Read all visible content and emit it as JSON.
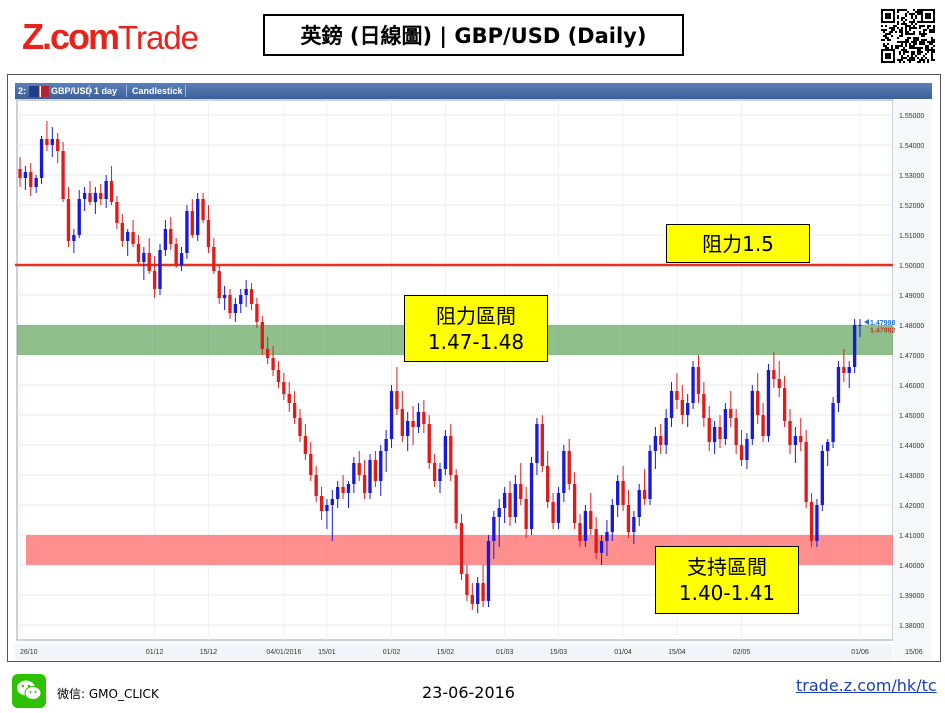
{
  "header": {
    "logo_z": "Z.com",
    "logo_trade": "Trade",
    "title": "英鎊 (日線圖) | GBP/USD  (Daily)"
  },
  "toolbar": {
    "index": "2:",
    "symbol": "GBP/USD",
    "timeframe": "1 day",
    "chart_style": "Candlestick"
  },
  "annotations": {
    "resistance_line": "阻力1.5",
    "resistance_zone_title": "阻力區間",
    "resistance_zone_range": "1.47-1.48",
    "support_zone_title": "支持區間",
    "support_zone_range": "1.40-1.41"
  },
  "price_markers": {
    "last_price": "1.47998",
    "second_price": "1.47982",
    "last_color": "#1f6fd6",
    "second_color": "#c0392b"
  },
  "colors": {
    "brand": "#e8231b",
    "up_candle": "#1a1ad6",
    "down_candle": "#e01b1b",
    "resistance_line": "#e8301a",
    "resistance_zone": "#6aaa64",
    "support_zone": "#ff7b7b",
    "label_bg": "#ffff00"
  },
  "chart_data": {
    "type": "candlestick",
    "symbol": "GBP/USD",
    "timeframe": "1 day",
    "ylim": [
      1.375,
      1.555
    ],
    "y_ticks": [
      "1.38000",
      "1.39000",
      "1.40000",
      "1.41000",
      "1.42000",
      "1.43000",
      "1.44000",
      "1.45000",
      "1.46000",
      "1.47000",
      "1.48000",
      "1.49000",
      "1.50000",
      "1.51000",
      "1.52000",
      "1.53000",
      "1.54000",
      "1.55000"
    ],
    "x_ticks": [
      {
        "label": "26/10",
        "index": 0
      },
      {
        "label": "01/12",
        "index": 25
      },
      {
        "label": "15/12",
        "index": 35
      },
      {
        "label": "04/01/2016",
        "index": 49
      },
      {
        "label": "15/01",
        "index": 57
      },
      {
        "label": "01/02",
        "index": 69
      },
      {
        "label": "15/02",
        "index": 79
      },
      {
        "label": "01/03",
        "index": 90
      },
      {
        "label": "15/03",
        "index": 100
      },
      {
        "label": "01/04",
        "index": 112
      },
      {
        "label": "15/04",
        "index": 122
      },
      {
        "label": "02/05",
        "index": 134
      },
      {
        "label": "01/06",
        "index": 156
      },
      {
        "label": "15/06",
        "index": 166
      }
    ],
    "resistance_line": 1.5,
    "resistance_zone": [
      1.47,
      1.48
    ],
    "support_zone": [
      1.4,
      1.41
    ],
    "candles": [
      [
        1.532,
        1.536,
        1.526,
        1.529
      ],
      [
        1.529,
        1.533,
        1.525,
        1.531
      ],
      [
        1.531,
        1.534,
        1.523,
        1.526
      ],
      [
        1.526,
        1.53,
        1.524,
        1.529
      ],
      [
        1.529,
        1.543,
        1.527,
        1.542
      ],
      [
        1.542,
        1.548,
        1.538,
        1.54
      ],
      [
        1.54,
        1.546,
        1.536,
        1.542
      ],
      [
        1.542,
        1.544,
        1.534,
        1.538
      ],
      [
        1.538,
        1.541,
        1.521,
        1.522
      ],
      [
        1.522,
        1.526,
        1.506,
        1.508
      ],
      [
        1.508,
        1.512,
        1.504,
        1.51
      ],
      [
        1.51,
        1.525,
        1.509,
        1.522
      ],
      [
        1.522,
        1.526,
        1.518,
        1.524
      ],
      [
        1.524,
        1.528,
        1.52,
        1.521
      ],
      [
        1.521,
        1.526,
        1.517,
        1.524
      ],
      [
        1.524,
        1.527,
        1.52,
        1.522
      ],
      [
        1.522,
        1.53,
        1.519,
        1.528
      ],
      [
        1.528,
        1.533,
        1.52,
        1.521
      ],
      [
        1.521,
        1.523,
        1.512,
        1.514
      ],
      [
        1.514,
        1.517,
        1.506,
        1.508
      ],
      [
        1.508,
        1.512,
        1.503,
        1.511
      ],
      [
        1.511,
        1.515,
        1.506,
        1.507
      ],
      [
        1.507,
        1.51,
        1.5,
        1.501
      ],
      [
        1.501,
        1.506,
        1.495,
        1.504
      ],
      [
        1.504,
        1.509,
        1.497,
        1.498
      ],
      [
        1.498,
        1.503,
        1.489,
        1.492
      ],
      [
        1.492,
        1.507,
        1.49,
        1.505
      ],
      [
        1.505,
        1.515,
        1.503,
        1.512
      ],
      [
        1.512,
        1.516,
        1.505,
        1.507
      ],
      [
        1.507,
        1.509,
        1.499,
        1.5
      ],
      [
        1.5,
        1.506,
        1.498,
        1.504
      ],
      [
        1.504,
        1.52,
        1.502,
        1.518
      ],
      [
        1.518,
        1.522,
        1.509,
        1.51
      ],
      [
        1.51,
        1.524,
        1.508,
        1.522
      ],
      [
        1.522,
        1.524,
        1.514,
        1.515
      ],
      [
        1.515,
        1.52,
        1.504,
        1.506
      ],
      [
        1.506,
        1.509,
        1.497,
        1.498
      ],
      [
        1.498,
        1.5,
        1.487,
        1.489
      ],
      [
        1.489,
        1.493,
        1.485,
        1.49
      ],
      [
        1.49,
        1.492,
        1.482,
        1.484
      ],
      [
        1.484,
        1.489,
        1.481,
        1.487
      ],
      [
        1.487,
        1.492,
        1.484,
        1.49
      ],
      [
        1.49,
        1.495,
        1.486,
        1.492
      ],
      [
        1.492,
        1.494,
        1.485,
        1.487
      ],
      [
        1.487,
        1.489,
        1.479,
        1.481
      ],
      [
        1.481,
        1.483,
        1.47,
        1.472
      ],
      [
        1.472,
        1.476,
        1.467,
        1.469
      ],
      [
        1.469,
        1.473,
        1.463,
        1.465
      ],
      [
        1.465,
        1.468,
        1.459,
        1.461
      ],
      [
        1.461,
        1.464,
        1.455,
        1.457
      ],
      [
        1.457,
        1.461,
        1.451,
        1.454
      ],
      [
        1.454,
        1.458,
        1.447,
        1.449
      ],
      [
        1.449,
        1.452,
        1.441,
        1.443
      ],
      [
        1.443,
        1.447,
        1.435,
        1.437
      ],
      [
        1.437,
        1.441,
        1.428,
        1.43
      ],
      [
        1.43,
        1.433,
        1.421,
        1.423
      ],
      [
        1.423,
        1.426,
        1.415,
        1.418
      ],
      [
        1.418,
        1.422,
        1.412,
        1.42
      ],
      [
        1.42,
        1.425,
        1.408,
        1.422
      ],
      [
        1.422,
        1.428,
        1.419,
        1.426
      ],
      [
        1.426,
        1.43,
        1.422,
        1.424
      ],
      [
        1.424,
        1.428,
        1.419,
        1.427
      ],
      [
        1.427,
        1.436,
        1.424,
        1.434
      ],
      [
        1.434,
        1.438,
        1.428,
        1.43
      ],
      [
        1.43,
        1.435,
        1.422,
        1.424
      ],
      [
        1.424,
        1.437,
        1.422,
        1.435
      ],
      [
        1.435,
        1.438,
        1.426,
        1.428
      ],
      [
        1.428,
        1.44,
        1.423,
        1.438
      ],
      [
        1.438,
        1.445,
        1.431,
        1.442
      ],
      [
        1.442,
        1.46,
        1.439,
        1.458
      ],
      [
        1.458,
        1.466,
        1.45,
        1.452
      ],
      [
        1.452,
        1.458,
        1.441,
        1.443
      ],
      [
        1.443,
        1.451,
        1.438,
        1.448
      ],
      [
        1.448,
        1.453,
        1.44,
        1.446
      ],
      [
        1.446,
        1.454,
        1.444,
        1.451
      ],
      [
        1.451,
        1.455,
        1.444,
        1.447
      ],
      [
        1.447,
        1.45,
        1.432,
        1.434
      ],
      [
        1.434,
        1.437,
        1.426,
        1.428
      ],
      [
        1.428,
        1.434,
        1.424,
        1.432
      ],
      [
        1.432,
        1.445,
        1.43,
        1.443
      ],
      [
        1.443,
        1.447,
        1.428,
        1.43
      ],
      [
        1.43,
        1.432,
        1.412,
        1.414
      ],
      [
        1.414,
        1.417,
        1.395,
        1.397
      ],
      [
        1.397,
        1.4,
        1.388,
        1.39
      ],
      [
        1.39,
        1.394,
        1.385,
        1.387
      ],
      [
        1.387,
        1.396,
        1.384,
        1.394
      ],
      [
        1.394,
        1.4,
        1.386,
        1.388
      ],
      [
        1.388,
        1.41,
        1.386,
        1.408
      ],
      [
        1.408,
        1.418,
        1.402,
        1.416
      ],
      [
        1.416,
        1.422,
        1.406,
        1.419
      ],
      [
        1.419,
        1.426,
        1.414,
        1.424
      ],
      [
        1.424,
        1.428,
        1.413,
        1.416
      ],
      [
        1.416,
        1.43,
        1.414,
        1.427
      ],
      [
        1.427,
        1.434,
        1.42,
        1.422
      ],
      [
        1.422,
        1.426,
        1.409,
        1.412
      ],
      [
        1.412,
        1.436,
        1.41,
        1.434
      ],
      [
        1.434,
        1.449,
        1.43,
        1.447
      ],
      [
        1.447,
        1.45,
        1.431,
        1.433
      ],
      [
        1.433,
        1.438,
        1.419,
        1.421
      ],
      [
        1.421,
        1.424,
        1.412,
        1.414
      ],
      [
        1.414,
        1.426,
        1.412,
        1.424
      ],
      [
        1.424,
        1.44,
        1.421,
        1.438
      ],
      [
        1.438,
        1.442,
        1.425,
        1.427
      ],
      [
        1.427,
        1.431,
        1.412,
        1.414
      ],
      [
        1.414,
        1.417,
        1.406,
        1.408
      ],
      [
        1.408,
        1.42,
        1.406,
        1.418
      ],
      [
        1.418,
        1.424,
        1.41,
        1.412
      ],
      [
        1.412,
        1.416,
        1.402,
        1.404
      ],
      [
        1.404,
        1.41,
        1.4,
        1.408
      ],
      [
        1.408,
        1.415,
        1.403,
        1.411
      ],
      [
        1.411,
        1.422,
        1.408,
        1.42
      ],
      [
        1.42,
        1.43,
        1.416,
        1.428
      ],
      [
        1.428,
        1.433,
        1.418,
        1.42
      ],
      [
        1.42,
        1.425,
        1.409,
        1.411
      ],
      [
        1.411,
        1.418,
        1.407,
        1.416
      ],
      [
        1.416,
        1.427,
        1.413,
        1.425
      ],
      [
        1.425,
        1.432,
        1.42,
        1.422
      ],
      [
        1.422,
        1.44,
        1.42,
        1.438
      ],
      [
        1.438,
        1.446,
        1.432,
        1.443
      ],
      [
        1.443,
        1.447,
        1.437,
        1.44
      ],
      [
        1.44,
        1.452,
        1.437,
        1.449
      ],
      [
        1.449,
        1.461,
        1.446,
        1.458
      ],
      [
        1.458,
        1.464,
        1.452,
        1.455
      ],
      [
        1.455,
        1.46,
        1.447,
        1.45
      ],
      [
        1.45,
        1.457,
        1.446,
        1.454
      ],
      [
        1.454,
        1.468,
        1.452,
        1.466
      ],
      [
        1.466,
        1.47,
        1.454,
        1.457
      ],
      [
        1.457,
        1.461,
        1.446,
        1.449
      ],
      [
        1.449,
        1.453,
        1.438,
        1.441
      ],
      [
        1.441,
        1.448,
        1.437,
        1.446
      ],
      [
        1.446,
        1.45,
        1.439,
        1.442
      ],
      [
        1.442,
        1.454,
        1.44,
        1.452
      ],
      [
        1.452,
        1.458,
        1.446,
        1.449
      ],
      [
        1.449,
        1.452,
        1.437,
        1.44
      ],
      [
        1.44,
        1.445,
        1.433,
        1.435
      ],
      [
        1.435,
        1.444,
        1.432,
        1.442
      ],
      [
        1.442,
        1.46,
        1.44,
        1.458
      ],
      [
        1.458,
        1.464,
        1.447,
        1.45
      ],
      [
        1.45,
        1.454,
        1.441,
        1.443
      ],
      [
        1.443,
        1.467,
        1.441,
        1.465
      ],
      [
        1.465,
        1.471,
        1.459,
        1.462
      ],
      [
        1.462,
        1.468,
        1.456,
        1.459
      ],
      [
        1.459,
        1.463,
        1.446,
        1.448
      ],
      [
        1.448,
        1.452,
        1.437,
        1.44
      ],
      [
        1.44,
        1.446,
        1.434,
        1.443
      ],
      [
        1.443,
        1.449,
        1.438,
        1.441
      ],
      [
        1.441,
        1.445,
        1.419,
        1.421
      ],
      [
        1.421,
        1.424,
        1.406,
        1.408
      ],
      [
        1.408,
        1.422,
        1.406,
        1.42
      ],
      [
        1.42,
        1.44,
        1.418,
        1.438
      ],
      [
        1.438,
        1.442,
        1.433,
        1.441
      ],
      [
        1.441,
        1.456,
        1.439,
        1.454
      ],
      [
        1.454,
        1.468,
        1.451,
        1.466
      ],
      [
        1.466,
        1.472,
        1.461,
        1.464
      ],
      [
        1.464,
        1.468,
        1.459,
        1.466
      ],
      [
        1.466,
        1.482,
        1.464,
        1.48
      ],
      [
        1.48,
        1.482,
        1.476,
        1.48
      ]
    ]
  },
  "footer": {
    "wechat_label": "微信: GMO_CLICK",
    "date": "23-06-2016",
    "link": "trade.z.com/hk/tc"
  }
}
